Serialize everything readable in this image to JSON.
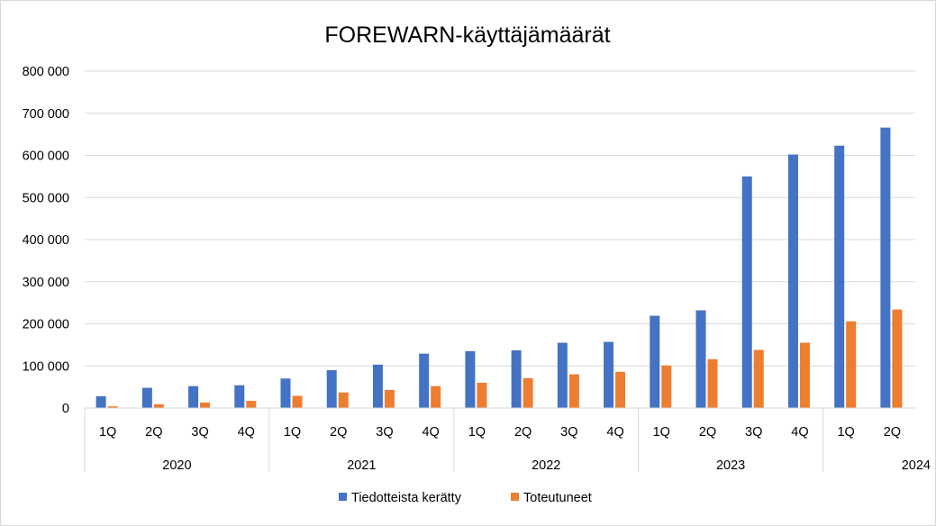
{
  "chart_data": {
    "type": "bar",
    "title": "FOREWARN-käyttäjämäärät",
    "xlabel": "",
    "ylabel": "",
    "ylim": [
      0,
      800000
    ],
    "yticks": [
      0,
      100000,
      200000,
      300000,
      400000,
      500000,
      600000,
      700000,
      800000
    ],
    "ytick_labels": [
      "0",
      "100 000",
      "200 000",
      "300 000",
      "400 000",
      "500 000",
      "600 000",
      "700 000",
      "800 000"
    ],
    "grid": true,
    "legend_position": "bottom",
    "categories": [
      "1Q",
      "2Q",
      "3Q",
      "4Q",
      "1Q",
      "2Q",
      "3Q",
      "4Q",
      "1Q",
      "2Q",
      "3Q",
      "4Q",
      "1Q",
      "2Q",
      "3Q",
      "4Q",
      "1Q",
      "2Q"
    ],
    "groups": [
      {
        "label": "2020",
        "count": 4
      },
      {
        "label": "2021",
        "count": 4
      },
      {
        "label": "2022",
        "count": 4
      },
      {
        "label": "2023",
        "count": 4
      },
      {
        "label": "2024",
        "count": 2
      }
    ],
    "series": [
      {
        "name": "Tiedotteista kerätty",
        "color": "#4472C4",
        "values": [
          28000,
          48000,
          52000,
          54000,
          70000,
          90000,
          103000,
          129000,
          135000,
          137000,
          155000,
          157000,
          219000,
          232000,
          550000,
          602000,
          623000,
          666000
        ]
      },
      {
        "name": "Toteutuneet",
        "color": "#ED7D31",
        "values": [
          4000,
          9000,
          13000,
          17000,
          29000,
          37000,
          43000,
          52000,
          60000,
          71000,
          80000,
          86000,
          101000,
          116000,
          138000,
          155000,
          206000,
          234000
        ]
      }
    ]
  }
}
